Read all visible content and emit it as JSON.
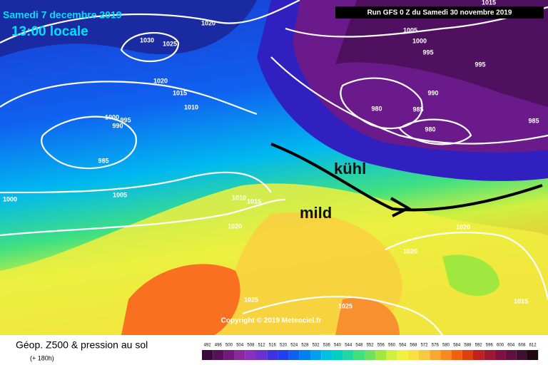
{
  "header": {
    "date": "Samedi 7 decembre 2019",
    "time": "13:00 locale",
    "run": "Run GFS 0 Z du Samedi 30 novembre 2019"
  },
  "annotations": {
    "cold": "kühl",
    "mild": "mild"
  },
  "copyright": "Copyright © 2019 Meteociel.fr",
  "footer": {
    "title": "Géop. Z500 & pression au sol",
    "lead": "(+ 180h)"
  },
  "isobars": [
    1015,
    1020,
    1030,
    1025,
    1005,
    1000,
    995,
    995,
    1020,
    1015,
    1010,
    990,
    980,
    985,
    980,
    985,
    1000,
    995,
    990,
    985,
    1005,
    1000,
    1010,
    1015,
    1020,
    1020,
    1020,
    1025,
    1025,
    1015
  ],
  "colorbar": {
    "values": [
      492,
      496,
      500,
      504,
      508,
      512,
      516,
      520,
      524,
      528,
      532,
      536,
      540,
      544,
      548,
      552,
      556,
      560,
      564,
      568,
      572,
      576,
      580,
      584,
      588,
      592,
      596,
      600,
      604,
      608,
      612
    ],
    "colors": [
      "#3a0a3a",
      "#55105a",
      "#701a7a",
      "#8a2a9a",
      "#8a30c0",
      "#6a30d0",
      "#4030e0",
      "#2040f0",
      "#1060f0",
      "#0080f0",
      "#00a0f0",
      "#00c0e0",
      "#00d0c0",
      "#20d8a0",
      "#40e080",
      "#70e060",
      "#a0e840",
      "#d0f040",
      "#f0f040",
      "#f8e040",
      "#f8c840",
      "#f8a830",
      "#f88820",
      "#f06010",
      "#e04010",
      "#c02020",
      "#a01830",
      "#801040",
      "#601040",
      "#401030",
      "#200810"
    ]
  }
}
